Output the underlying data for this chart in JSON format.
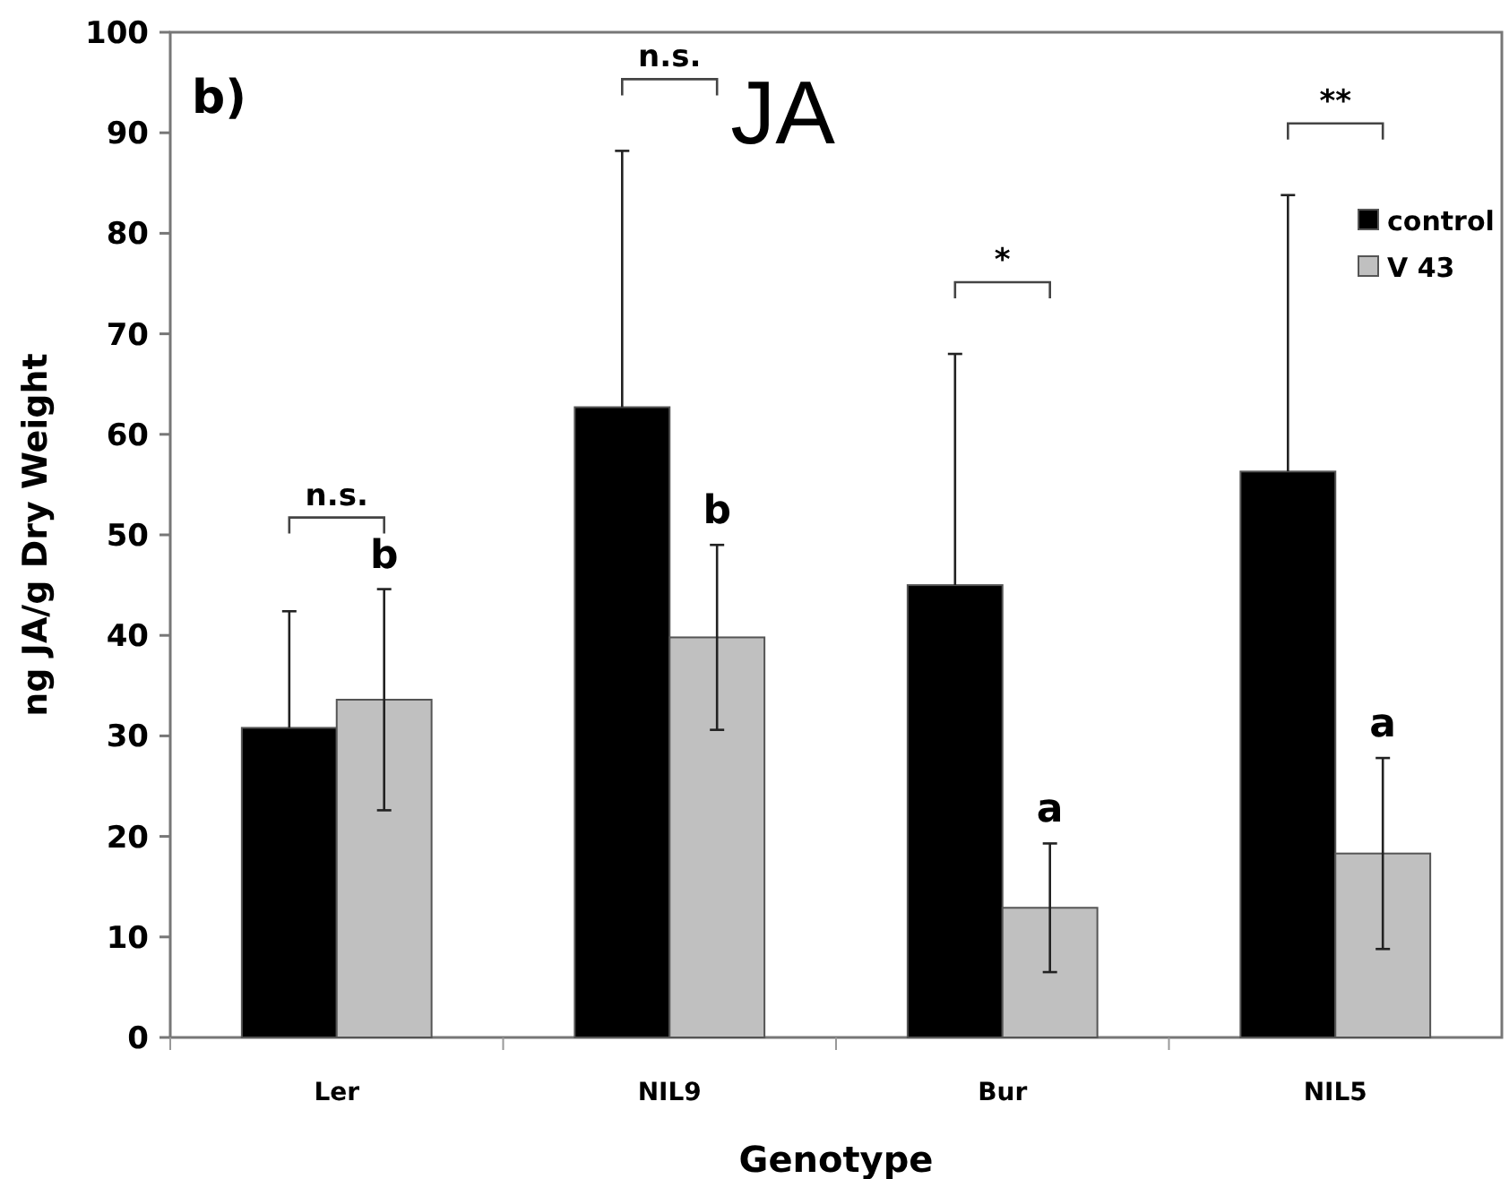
{
  "chart_data": {
    "type": "bar",
    "title": "JA",
    "xlabel": "Genotype",
    "ylabel": "ng JA/g Dry Weight",
    "categories": [
      "Ler",
      "NIL9",
      "Bur",
      "NIL5"
    ],
    "series": [
      {
        "name": "control",
        "color": "#000000",
        "values": [
          30.8,
          62.7,
          45,
          56.3
        ],
        "errors": [
          11.6,
          25.5,
          23,
          27.5
        ]
      },
      {
        "name": "V 43",
        "color": "#c0c0c0",
        "values": [
          33.6,
          39.8,
          12.9,
          18.3
        ],
        "errors": [
          11,
          9.2,
          6.4,
          9.5
        ]
      }
    ],
    "ylim": [
      0,
      100
    ],
    "yticks": [
      0,
      10,
      20,
      30,
      40,
      50,
      60,
      70,
      80,
      90,
      100
    ],
    "grid": false,
    "legend": "top right",
    "annotations": [
      "b)",
      "n.s.",
      "b",
      "n.s.",
      "b",
      "*",
      "a",
      "**",
      "a"
    ]
  }
}
